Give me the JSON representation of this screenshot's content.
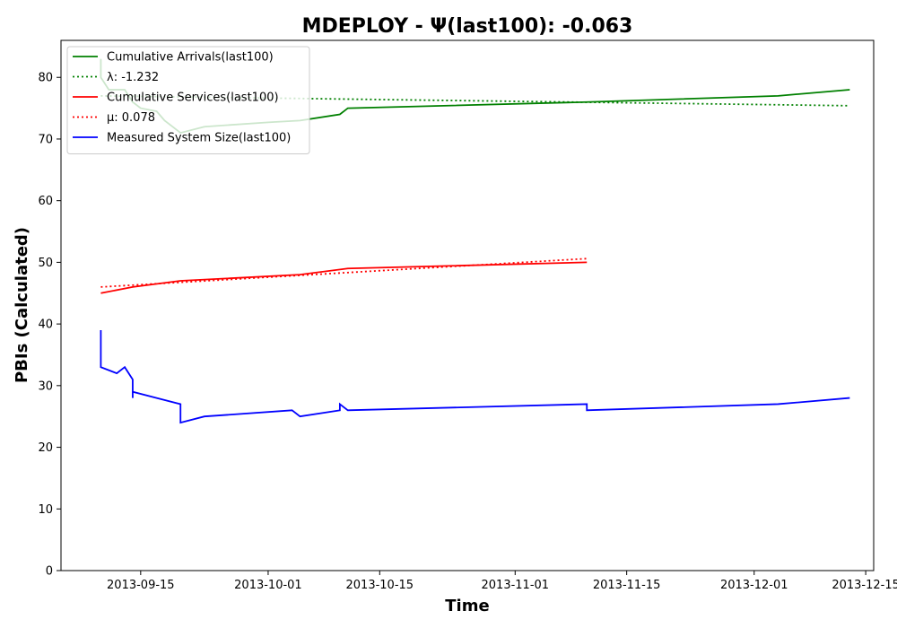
{
  "chart_data": {
    "type": "line",
    "title": "MDEPLOY -  Ψ(last100): -0.063",
    "xlabel": "Time",
    "ylabel": "PBIs (Calculated)",
    "xlim": [
      "2013-09-05",
      "2013-12-16"
    ],
    "ylim": [
      0,
      86
    ],
    "x_ticks": [
      "2013-09-15",
      "2013-10-01",
      "2013-10-15",
      "2013-11-01",
      "2013-11-15",
      "2013-12-01",
      "2013-12-15"
    ],
    "y_ticks": [
      0,
      10,
      20,
      30,
      40,
      50,
      60,
      70,
      80
    ],
    "grid": false,
    "legend_position": "top-left",
    "series": [
      {
        "name": "Cumulative Arrivals(last100)",
        "color": "#008000",
        "style": "solid",
        "points": [
          [
            "2013-09-10",
            83
          ],
          [
            "2013-09-10",
            80
          ],
          [
            "2013-09-11",
            78
          ],
          [
            "2013-09-13",
            78
          ],
          [
            "2013-09-14",
            76
          ],
          [
            "2013-09-15",
            75
          ],
          [
            "2013-09-17",
            74.5
          ],
          [
            "2013-09-18",
            73
          ],
          [
            "2013-09-19",
            72
          ],
          [
            "2013-09-20",
            71
          ],
          [
            "2013-09-23",
            72
          ],
          [
            "2013-10-01",
            72.7
          ],
          [
            "2013-10-05",
            73
          ],
          [
            "2013-10-10",
            74
          ],
          [
            "2013-10-11",
            75
          ],
          [
            "2013-11-10",
            76
          ],
          [
            "2013-12-04",
            77
          ],
          [
            "2013-12-13",
            78
          ]
        ]
      },
      {
        "name": "λ: -1.232",
        "color": "#008000",
        "style": "dotted",
        "points": [
          [
            "2013-09-10",
            77.0
          ],
          [
            "2013-12-13",
            75.4
          ]
        ]
      },
      {
        "name": "Cumulative Services(last100)",
        "color": "#ff0000",
        "style": "solid",
        "points": [
          [
            "2013-09-10",
            45
          ],
          [
            "2013-09-14",
            46
          ],
          [
            "2013-09-20",
            47
          ],
          [
            "2013-10-05",
            48
          ],
          [
            "2013-10-11",
            49
          ],
          [
            "2013-11-10",
            50
          ]
        ]
      },
      {
        "name": "μ: 0.078",
        "color": "#ff0000",
        "style": "dotted",
        "points": [
          [
            "2013-09-10",
            46.0
          ],
          [
            "2013-11-10",
            50.6
          ]
        ]
      },
      {
        "name": "Measured System Size(last100)",
        "color": "#0000ff",
        "style": "solid",
        "points": [
          [
            "2013-09-10",
            39
          ],
          [
            "2013-09-10",
            38
          ],
          [
            "2013-09-10",
            37
          ],
          [
            "2013-09-10",
            33
          ],
          [
            "2013-09-12",
            32
          ],
          [
            "2013-09-13",
            33
          ],
          [
            "2013-09-14",
            31
          ],
          [
            "2013-09-14",
            28
          ],
          [
            "2013-09-14",
            29
          ],
          [
            "2013-09-17",
            28
          ],
          [
            "2013-09-20",
            27
          ],
          [
            "2013-09-20",
            24
          ],
          [
            "2013-09-23",
            25
          ],
          [
            "2013-10-04",
            26
          ],
          [
            "2013-10-05",
            25
          ],
          [
            "2013-10-10",
            26
          ],
          [
            "2013-10-10",
            27
          ],
          [
            "2013-10-11",
            26
          ],
          [
            "2013-11-10",
            27
          ],
          [
            "2013-11-10",
            26
          ],
          [
            "2013-12-04",
            27
          ],
          [
            "2013-12-13",
            28
          ]
        ]
      }
    ]
  }
}
